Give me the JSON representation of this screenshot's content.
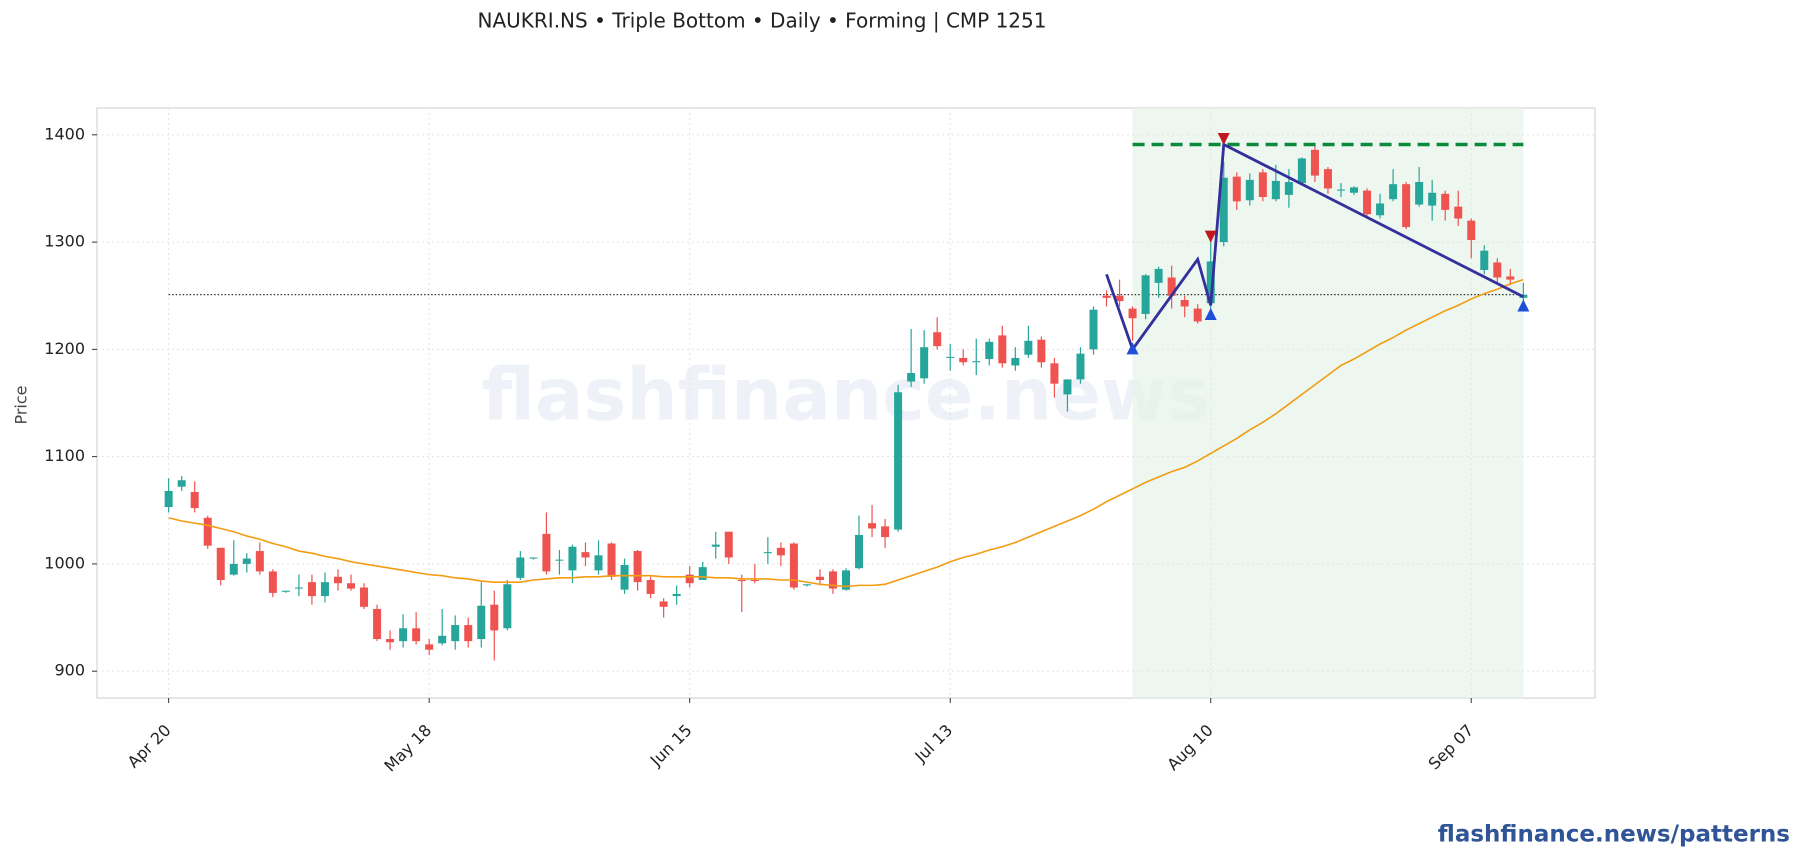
{
  "chart_data": {
    "type": "candlestick",
    "title": "NAUKRI.NS  •  Triple Bottom  •  Daily  •  Forming  |  CMP 1251",
    "y_label": "Price",
    "watermark": "flashfinance.news",
    "footer": "flashfinance.news/patterns",
    "grid": true,
    "up_color": "#26a69a",
    "down_color": "#ef5350",
    "xlim": [
      -5.5,
      109.5
    ],
    "ylim": [
      875,
      1425
    ],
    "yticks": [
      900,
      1000,
      1100,
      1200,
      1300,
      1400
    ],
    "categories": [
      "Apr 20",
      null,
      null,
      null,
      null,
      null,
      null,
      null,
      null,
      null,
      null,
      null,
      null,
      null,
      null,
      null,
      null,
      null,
      null,
      null,
      "May 18",
      null,
      null,
      null,
      null,
      null,
      null,
      null,
      null,
      null,
      null,
      null,
      null,
      null,
      null,
      null,
      null,
      null,
      null,
      null,
      "Jun 15",
      null,
      null,
      null,
      null,
      null,
      null,
      null,
      null,
      null,
      null,
      null,
      null,
      null,
      null,
      null,
      null,
      null,
      null,
      null,
      "Jul 13",
      null,
      null,
      null,
      null,
      null,
      null,
      null,
      null,
      null,
      null,
      null,
      null,
      null,
      null,
      null,
      null,
      null,
      null,
      null,
      "Aug 10",
      null,
      null,
      null,
      null,
      null,
      null,
      null,
      null,
      null,
      null,
      null,
      null,
      null,
      null,
      null,
      null,
      null,
      null,
      null,
      "Sep 07",
      null,
      null,
      null,
      null
    ],
    "open": [
      1053,
      1072,
      1067,
      1043,
      1015,
      990,
      1000,
      1012,
      993,
      974,
      977,
      983,
      970,
      988,
      982,
      978,
      958,
      930,
      928,
      940,
      925,
      926,
      928,
      943,
      930,
      962,
      940,
      987,
      1005,
      1028,
      1003,
      994,
      1011,
      994,
      1019,
      976,
      1012,
      985,
      965,
      970,
      990,
      985,
      1016,
      1030,
      985,
      985,
      1010,
      1015,
      1019,
      980,
      988,
      993,
      976,
      996,
      1038,
      1035,
      1032,
      1170,
      1173,
      1216,
      1192,
      1192,
      1188,
      1191,
      1213,
      1185,
      1195,
      1209,
      1187,
      1158,
      1172,
      1200,
      1250,
      1250,
      1238,
      1233,
      1262,
      1267,
      1246,
      1238,
      1243,
      1300,
      1361,
      1339,
      1365,
      1340,
      1344,
      1355,
      1386,
      1368,
      1348,
      1346,
      1348,
      1325,
      1340,
      1354,
      1335,
      1334,
      1345,
      1333,
      1320,
      1274,
      1281,
      1268,
      1248
    ],
    "high": [
      1080,
      1082,
      1077,
      1045,
      1015,
      1022,
      1010,
      1020,
      995,
      975,
      990,
      990,
      992,
      995,
      990,
      982,
      962,
      938,
      953,
      955,
      930,
      958,
      952,
      950,
      983,
      975,
      985,
      1012,
      1006,
      1048,
      1013,
      1018,
      1020,
      1022,
      1020,
      1005,
      1013,
      988,
      968,
      980,
      998,
      1002,
      1030,
      1030,
      990,
      1000,
      1025,
      1020,
      1020,
      981,
      995,
      995,
      996,
      1045,
      1055,
      1042,
      1167,
      1219,
      1218,
      1230,
      1205,
      1200,
      1210,
      1210,
      1222,
      1202,
      1222,
      1212,
      1192,
      1172,
      1202,
      1240,
      1255,
      1265,
      1240,
      1270,
      1277,
      1278,
      1250,
      1242,
      1302,
      1375,
      1365,
      1364,
      1368,
      1372,
      1368,
      1379,
      1390,
      1370,
      1355,
      1352,
      1350,
      1345,
      1368,
      1356,
      1370,
      1358,
      1348,
      1348,
      1322,
      1297,
      1285,
      1275,
      1262
    ],
    "low": [
      1048,
      1068,
      1048,
      1014,
      980,
      989,
      992,
      990,
      969,
      973,
      970,
      962,
      964,
      975,
      975,
      958,
      928,
      920,
      922,
      925,
      915,
      924,
      920,
      922,
      922,
      910,
      938,
      985,
      1004,
      990,
      990,
      982,
      998,
      990,
      985,
      972,
      975,
      968,
      950,
      962,
      978,
      985,
      1005,
      1000,
      955,
      982,
      1000,
      998,
      976,
      979,
      980,
      972,
      975,
      995,
      1025,
      1015,
      1030,
      1165,
      1168,
      1200,
      1180,
      1185,
      1176,
      1185,
      1183,
      1180,
      1192,
      1183,
      1155,
      1142,
      1168,
      1195,
      1240,
      1240,
      1208,
      1228,
      1248,
      1238,
      1230,
      1224,
      1235,
      1296,
      1330,
      1334,
      1338,
      1338,
      1332,
      1353,
      1356,
      1345,
      1342,
      1344,
      1322,
      1322,
      1338,
      1312,
      1333,
      1320,
      1320,
      1315,
      1285,
      1270,
      1262,
      1260,
      1242
    ],
    "close": [
      1068,
      1078,
      1052,
      1017,
      985,
      1000,
      1005,
      993,
      973,
      975,
      978,
      970,
      983,
      982,
      977,
      960,
      930,
      927,
      940,
      928,
      920,
      933,
      943,
      928,
      961,
      938,
      981,
      1006,
      1006,
      993,
      1004,
      1016,
      1006,
      1008,
      988,
      999,
      983,
      972,
      960,
      972,
      982,
      997,
      1018,
      1006,
      984,
      984,
      1011,
      1008,
      978,
      981,
      985,
      977,
      994,
      1027,
      1033,
      1025,
      1160,
      1178,
      1202,
      1203,
      1193,
      1188,
      1189,
      1207,
      1187,
      1192,
      1208,
      1188,
      1168,
      1172,
      1196,
      1237,
      1248,
      1245,
      1229,
      1269,
      1275,
      1250,
      1240,
      1226,
      1282,
      1360,
      1338,
      1358,
      1342,
      1357,
      1356,
      1378,
      1362,
      1350,
      1349,
      1351,
      1326,
      1336,
      1354,
      1314,
      1356,
      1346,
      1330,
      1322,
      1302,
      1292,
      1267,
      1265,
      1251
    ],
    "ma": {
      "color": "#f39c12",
      "values": [
        1043,
        1040,
        1038,
        1036,
        1033,
        1030,
        1026,
        1023,
        1019,
        1016,
        1012,
        1010,
        1007,
        1005,
        1002,
        1000,
        998,
        996,
        994,
        992,
        990,
        989,
        987,
        986,
        984,
        983,
        983,
        983,
        985,
        986,
        987,
        987,
        988,
        988,
        989,
        989,
        989,
        989,
        988,
        988,
        988,
        988,
        987,
        987,
        986,
        986,
        986,
        985,
        985,
        983,
        981,
        980,
        979,
        980,
        980,
        981,
        985,
        989,
        993,
        997,
        1002,
        1006,
        1009,
        1013,
        1016,
        1020,
        1025,
        1030,
        1035,
        1040,
        1045,
        1051,
        1058,
        1064,
        1070,
        1076,
        1081,
        1086,
        1090,
        1096,
        1103,
        1110,
        1117,
        1125,
        1132,
        1140,
        1149,
        1158,
        1167,
        1176,
        1185,
        1191,
        1198,
        1205,
        1211,
        1218,
        1224,
        1230,
        1236,
        1241,
        1247,
        1252,
        1256,
        1261,
        1265
      ]
    },
    "zone": {
      "x": [
        74,
        104
      ],
      "color": "#e6f4ea"
    },
    "resistance": {
      "value": 1391,
      "x": [
        74,
        104
      ],
      "color": "#0a8a3a"
    },
    "cmp_line": {
      "value": 1251,
      "x": [
        0,
        104
      ],
      "color": "#333333"
    },
    "pattern_line": {
      "color": "#33309b",
      "x": [
        72,
        74,
        79,
        80,
        81,
        104
      ],
      "y": [
        1270,
        1200,
        1284,
        1241,
        1391,
        1249
      ]
    },
    "troughs": {
      "color": "#1f4fd8",
      "x": [
        74,
        80,
        104
      ],
      "y": [
        1200,
        1232,
        1240
      ]
    },
    "peaks": {
      "color": "#c0181e",
      "x": [
        80,
        81
      ],
      "y": [
        1306,
        1397
      ]
    }
  }
}
